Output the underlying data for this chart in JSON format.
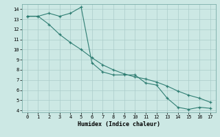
{
  "line1_x": [
    0,
    1,
    2,
    3,
    4,
    5,
    6,
    7,
    8,
    9,
    10,
    11,
    12,
    13,
    14,
    15,
    16,
    17
  ],
  "line1_y": [
    13.3,
    13.3,
    13.6,
    13.3,
    13.6,
    14.2,
    8.7,
    7.8,
    7.5,
    7.5,
    7.5,
    6.7,
    6.5,
    5.2,
    4.3,
    4.1,
    4.3,
    4.2
  ],
  "line2_x": [
    0,
    1,
    2,
    3,
    4,
    5,
    6,
    7,
    8,
    9,
    10,
    11,
    12,
    13,
    14,
    15,
    16,
    17
  ],
  "line2_y": [
    13.3,
    13.3,
    12.5,
    11.5,
    10.7,
    10.0,
    9.2,
    8.5,
    8.0,
    7.6,
    7.3,
    7.1,
    6.8,
    6.4,
    5.9,
    5.5,
    5.2,
    4.8
  ],
  "line_color": "#2e7d72",
  "bg_color": "#cce8e4",
  "grid_color": "#aaccca",
  "xlabel": "Humidex (Indice chaleur)",
  "xlim": [
    -0.5,
    17.5
  ],
  "ylim": [
    3.8,
    14.5
  ],
  "yticks": [
    4,
    5,
    6,
    7,
    8,
    9,
    10,
    11,
    12,
    13,
    14
  ],
  "xticks": [
    0,
    1,
    2,
    3,
    4,
    5,
    6,
    7,
    8,
    9,
    10,
    11,
    12,
    13,
    14,
    15,
    16,
    17
  ]
}
